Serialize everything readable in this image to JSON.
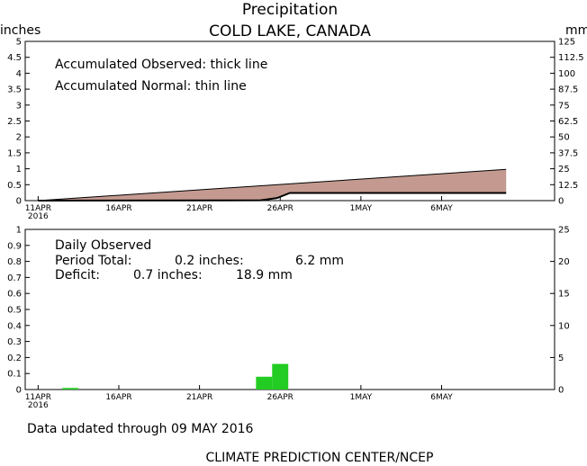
{
  "title": "Precipitation",
  "location": "COLD LAKE, CANADA",
  "units_left": "inches",
  "units_right": "mm",
  "footer_updated": "Data updated through 09 MAY 2016",
  "footer_credit": "CLIMATE PREDICTION CENTER/NCEP",
  "colors": {
    "observed_fill": "#c49a90",
    "daily_bar": "#22cc22",
    "axis": "#000000"
  },
  "chart_data": [
    {
      "type": "area",
      "name": "accumulated",
      "annotations": [
        "Accumulated Observed: thick line",
        "Accumulated Normal: thin line"
      ],
      "x_tick_labels": [
        "11APR",
        "16APR",
        "21APR",
        "26APR",
        "1MAY",
        "6MAY"
      ],
      "x_tick_days": [
        0,
        5,
        10,
        15,
        20,
        25
      ],
      "x_start_year": "2016",
      "x_range_days": [
        -0.8,
        32
      ],
      "ylim_inches": [
        0,
        5
      ],
      "yticks_inches": [
        "0",
        "0.5",
        "1",
        "1.5",
        "2",
        "2.5",
        "3",
        "3.5",
        "4",
        "4.5",
        "5"
      ],
      "ylim_mm": [
        0,
        125
      ],
      "yticks_mm": [
        "0",
        "12.5",
        "25",
        "37.5",
        "50",
        "62.5",
        "75",
        "87.5",
        "100",
        "112.5",
        "125"
      ],
      "series": [
        {
          "name": "Accumulated Observed",
          "x": [
            0,
            13.8,
            14.8,
            15.6,
            29
          ],
          "y": [
            0,
            0.01,
            0.08,
            0.24,
            0.24
          ]
        },
        {
          "name": "Accumulated Normal",
          "x": [
            0,
            29
          ],
          "y": [
            0,
            0.98
          ]
        }
      ]
    },
    {
      "type": "bar",
      "name": "daily",
      "title": "Daily Observed",
      "period_total_label": "Period Total:",
      "period_total_in": "0.2 inches:",
      "period_total_mm": "6.2 mm",
      "deficit_label": "Deficit:",
      "deficit_in": "0.7 inches:",
      "deficit_mm": "18.9 mm",
      "x_tick_labels": [
        "11APR",
        "16APR",
        "21APR",
        "26APR",
        "1MAY",
        "6MAY"
      ],
      "x_tick_days": [
        0,
        5,
        10,
        15,
        20,
        25
      ],
      "x_start_year": "2016",
      "ylim_inches": [
        0,
        1
      ],
      "yticks_inches": [
        "0",
        "0.1",
        "0.2",
        "0.3",
        "0.4",
        "0.5",
        "0.6",
        "0.7",
        "0.8",
        "0.9",
        "1"
      ],
      "ylim_mm": [
        0,
        25
      ],
      "yticks_mm": [
        "0",
        "5",
        "10",
        "15",
        "20",
        "25"
      ],
      "x": [
        2,
        14,
        15
      ],
      "values": [
        0.01,
        0.08,
        0.16
      ]
    }
  ]
}
